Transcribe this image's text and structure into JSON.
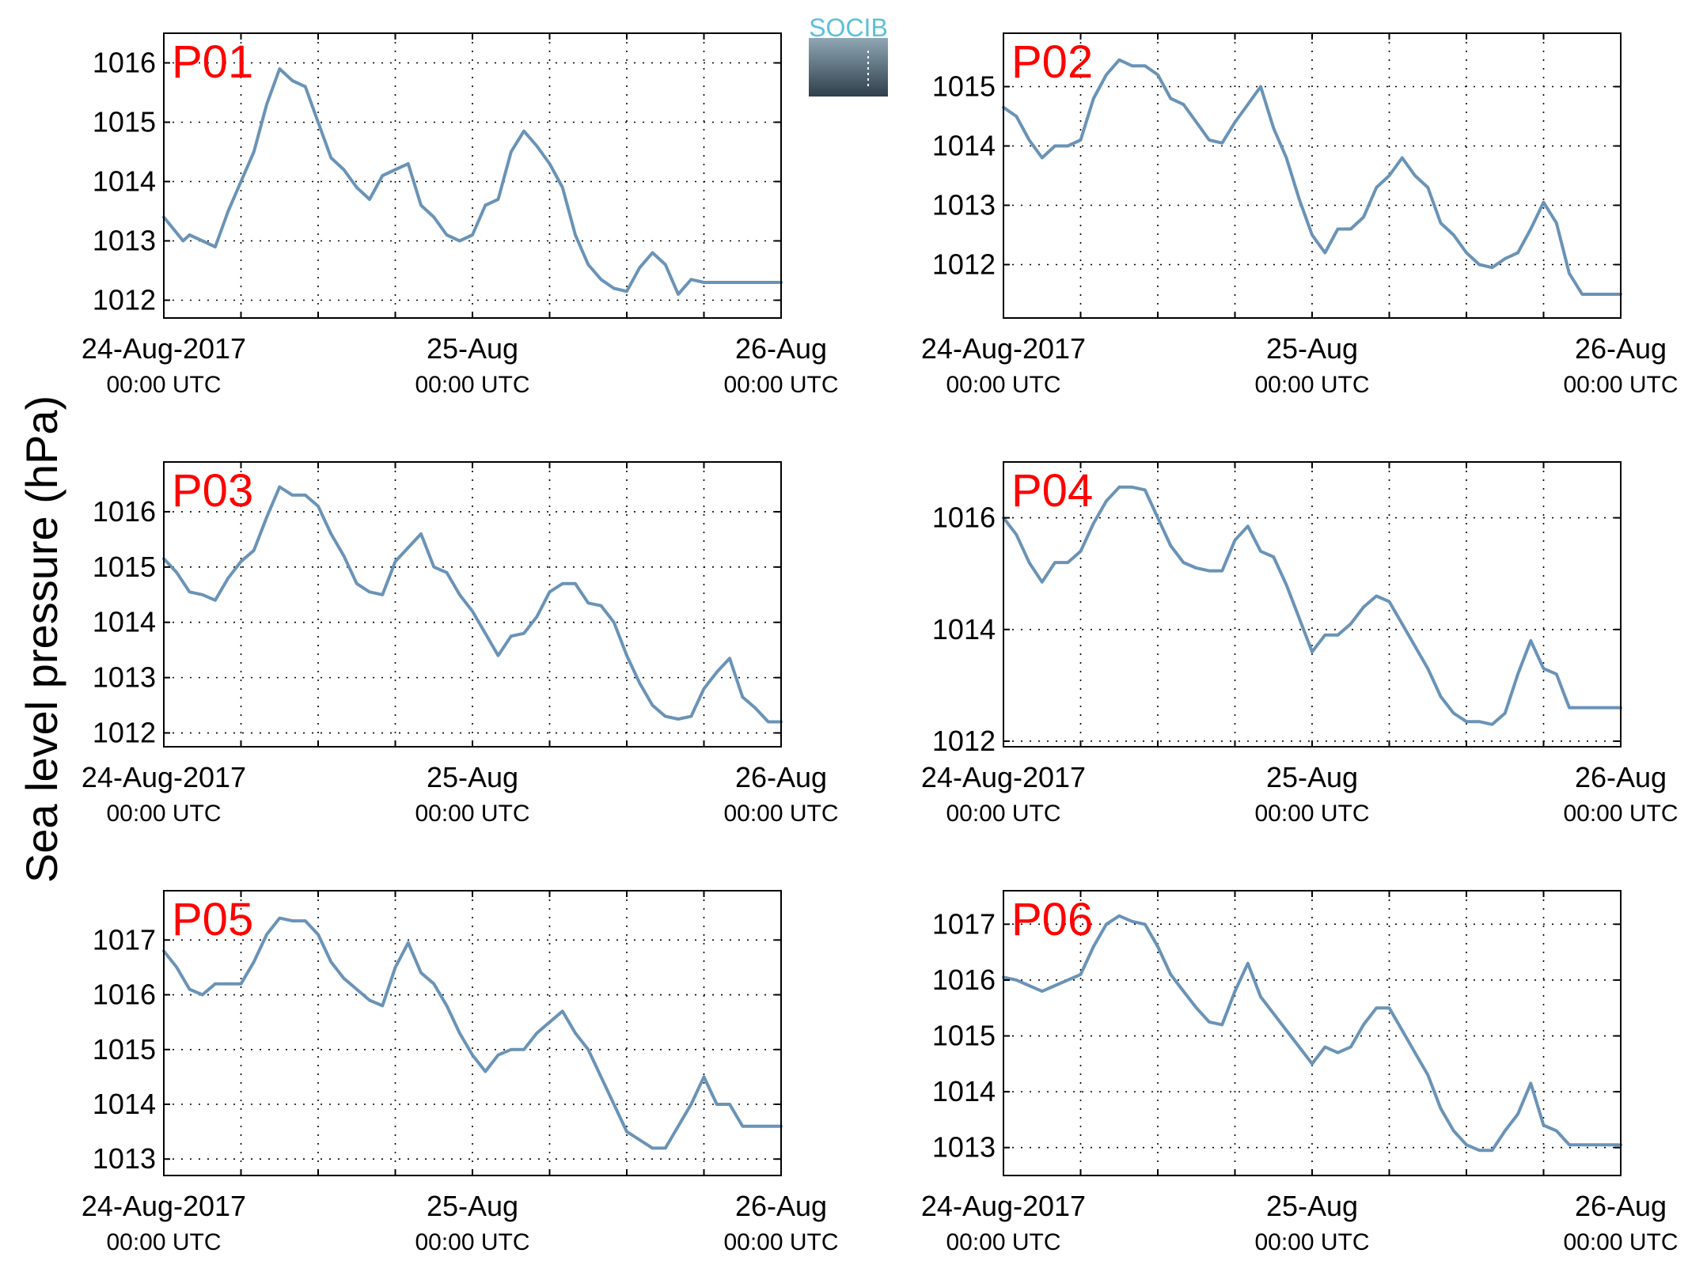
{
  "figure": {
    "ylabel": "Sea level pressure (hPa)",
    "logo_text": "SOCIB",
    "line_color": "#6a93b6",
    "label_color": "#ff0000"
  },
  "chart_data": [
    {
      "type": "line",
      "panel": "P01",
      "label": "P01",
      "x_ticks": [
        {
          "main": "24-Aug-2017",
          "sub": "00:00 UTC"
        },
        {
          "main": "25-Aug",
          "sub": "00:00 UTC"
        },
        {
          "main": "26-Aug",
          "sub": "00:00 UTC"
        }
      ],
      "xlim": [
        0,
        48
      ],
      "ylim": [
        1011.7,
        1016.5
      ],
      "yticks": [
        1012,
        1013,
        1014,
        1015,
        1016
      ],
      "grid": true,
      "series": [
        {
          "x_hours": [
            0,
            1.5,
            2,
            3,
            4,
            5,
            6,
            7,
            8,
            9,
            10,
            11,
            12,
            13,
            14,
            15,
            16,
            17,
            18,
            19,
            20,
            21,
            22,
            23,
            24,
            25,
            26,
            27,
            28,
            29,
            30,
            31,
            32,
            33,
            34,
            35,
            36,
            37,
            38,
            39,
            40,
            41,
            42,
            43,
            44,
            45,
            46,
            47,
            48
          ],
          "values": [
            1013.4,
            1013.0,
            1013.1,
            1013.0,
            1012.9,
            1013.5,
            1014.0,
            1014.5,
            1015.3,
            1015.9,
            1015.7,
            1015.6,
            1015.0,
            1014.4,
            1014.2,
            1013.9,
            1013.7,
            1014.1,
            1014.2,
            1014.3,
            1013.6,
            1013.4,
            1013.1,
            1013.0,
            1013.1,
            1013.6,
            1013.7,
            1014.5,
            1014.85,
            1014.6,
            1014.3,
            1013.9,
            1013.1,
            1012.6,
            1012.35,
            1012.2,
            1012.15,
            1012.55,
            1012.8,
            1012.6,
            1012.1,
            1012.35,
            1012.3,
            1012.3,
            1012.3,
            1012.3,
            1012.3,
            1012.3,
            1012.3
          ]
        }
      ]
    },
    {
      "type": "line",
      "panel": "P02",
      "label": "P02",
      "x_ticks": [
        {
          "main": "24-Aug-2017",
          "sub": "00:00 UTC"
        },
        {
          "main": "25-Aug",
          "sub": "00:00 UTC"
        },
        {
          "main": "26-Aug",
          "sub": "00:00 UTC"
        }
      ],
      "xlim": [
        0,
        48
      ],
      "ylim": [
        1011.1,
        1015.9
      ],
      "yticks": [
        1012,
        1013,
        1014,
        1015
      ],
      "grid": true,
      "series": [
        {
          "x_hours": [
            0,
            1,
            2,
            3,
            4,
            5,
            6,
            7,
            8,
            9,
            10,
            11,
            12,
            13,
            14,
            15,
            16,
            17,
            18,
            19,
            20,
            21,
            22,
            23,
            24,
            25,
            26,
            27,
            28,
            29,
            30,
            31,
            32,
            33,
            34,
            35,
            36,
            37,
            38,
            39,
            40,
            41,
            42,
            43,
            44,
            45,
            46,
            47,
            48
          ],
          "values": [
            1014.65,
            1014.5,
            1014.1,
            1013.8,
            1014.0,
            1014.0,
            1014.1,
            1014.8,
            1015.2,
            1015.45,
            1015.35,
            1015.35,
            1015.2,
            1014.8,
            1014.7,
            1014.4,
            1014.1,
            1014.05,
            1014.4,
            1014.7,
            1015.0,
            1014.3,
            1013.8,
            1013.1,
            1012.5,
            1012.2,
            1012.6,
            1012.6,
            1012.8,
            1013.3,
            1013.5,
            1013.8,
            1013.5,
            1013.3,
            1012.7,
            1012.5,
            1012.2,
            1012.0,
            1011.95,
            1012.1,
            1012.2,
            1012.6,
            1013.05,
            1012.7,
            1011.85,
            1011.5,
            1011.5,
            1011.5,
            1011.5
          ]
        }
      ]
    },
    {
      "type": "line",
      "panel": "P03",
      "label": "P03",
      "x_ticks": [
        {
          "main": "24-Aug-2017",
          "sub": "00:00 UTC"
        },
        {
          "main": "25-Aug",
          "sub": "00:00 UTC"
        },
        {
          "main": "26-Aug",
          "sub": "00:00 UTC"
        }
      ],
      "xlim": [
        0,
        48
      ],
      "ylim": [
        1011.75,
        1016.9
      ],
      "yticks": [
        1012,
        1013,
        1014,
        1015,
        1016
      ],
      "grid": true,
      "series": [
        {
          "x_hours": [
            0,
            1,
            2,
            3,
            4,
            5,
            6,
            7,
            8,
            9,
            10,
            11,
            12,
            13,
            14,
            15,
            16,
            17,
            18,
            19,
            20,
            21,
            22,
            23,
            24,
            25,
            26,
            27,
            28,
            29,
            30,
            31,
            32,
            33,
            34,
            35,
            36,
            37,
            38,
            39,
            40,
            41,
            42,
            43,
            44,
            45,
            46,
            47,
            48
          ],
          "values": [
            1015.15,
            1014.9,
            1014.55,
            1014.5,
            1014.4,
            1014.8,
            1015.1,
            1015.3,
            1015.9,
            1016.45,
            1016.3,
            1016.3,
            1016.1,
            1015.6,
            1015.2,
            1014.7,
            1014.55,
            1014.5,
            1015.1,
            1015.35,
            1015.6,
            1015.0,
            1014.9,
            1014.5,
            1014.2,
            1013.8,
            1013.4,
            1013.75,
            1013.8,
            1014.1,
            1014.55,
            1014.7,
            1014.7,
            1014.35,
            1014.3,
            1014.0,
            1013.4,
            1012.9,
            1012.5,
            1012.3,
            1012.25,
            1012.3,
            1012.8,
            1013.1,
            1013.35,
            1012.65,
            1012.45,
            1012.2,
            1012.2
          ]
        }
      ]
    },
    {
      "type": "line",
      "panel": "P04",
      "label": "P04",
      "x_ticks": [
        {
          "main": "24-Aug-2017",
          "sub": "00:00 UTC"
        },
        {
          "main": "25-Aug",
          "sub": "00:00 UTC"
        },
        {
          "main": "26-Aug",
          "sub": "00:00 UTC"
        }
      ],
      "xlim": [
        0,
        48
      ],
      "ylim": [
        1011.9,
        1017.0
      ],
      "yticks": [
        1012,
        1014,
        1016
      ],
      "grid": true,
      "series": [
        {
          "x_hours": [
            0,
            1,
            2,
            3,
            4,
            5,
            6,
            7,
            8,
            9,
            10,
            11,
            12,
            13,
            14,
            15,
            16,
            17,
            18,
            19,
            20,
            21,
            22,
            23,
            24,
            25,
            26,
            27,
            28,
            29,
            30,
            31,
            32,
            33,
            34,
            35,
            36,
            37,
            38,
            39,
            40,
            41,
            42,
            43,
            44,
            45,
            46,
            47,
            48
          ],
          "values": [
            1016.0,
            1015.7,
            1015.2,
            1014.85,
            1015.2,
            1015.2,
            1015.4,
            1015.9,
            1016.3,
            1016.55,
            1016.55,
            1016.5,
            1016.0,
            1015.5,
            1015.2,
            1015.1,
            1015.05,
            1015.05,
            1015.6,
            1015.85,
            1015.4,
            1015.3,
            1014.8,
            1014.2,
            1013.6,
            1013.9,
            1013.9,
            1014.1,
            1014.4,
            1014.6,
            1014.5,
            1014.1,
            1013.7,
            1013.3,
            1012.8,
            1012.5,
            1012.35,
            1012.35,
            1012.3,
            1012.5,
            1013.2,
            1013.8,
            1013.3,
            1013.2,
            1012.6,
            1012.6,
            1012.6,
            1012.6,
            1012.6
          ]
        }
      ]
    },
    {
      "type": "line",
      "panel": "P05",
      "label": "P05",
      "x_ticks": [
        {
          "main": "24-Aug-2017",
          "sub": "00:00 UTC"
        },
        {
          "main": "25-Aug",
          "sub": "00:00 UTC"
        },
        {
          "main": "26-Aug",
          "sub": "00:00 UTC"
        }
      ],
      "xlim": [
        0,
        48
      ],
      "ylim": [
        1012.7,
        1017.9
      ],
      "yticks": [
        1013,
        1014,
        1015,
        1016,
        1017
      ],
      "grid": true,
      "series": [
        {
          "x_hours": [
            0,
            1,
            2,
            3,
            4,
            5,
            6,
            7,
            8,
            9,
            10,
            11,
            12,
            13,
            14,
            15,
            16,
            17,
            18,
            19,
            20,
            21,
            22,
            23,
            24,
            25,
            26,
            27,
            28,
            29,
            30,
            31,
            32,
            33,
            34,
            35,
            36,
            37,
            38,
            39,
            40,
            41,
            42,
            43,
            44,
            45,
            46,
            47,
            48
          ],
          "values": [
            1016.8,
            1016.5,
            1016.1,
            1016.0,
            1016.2,
            1016.2,
            1016.2,
            1016.6,
            1017.1,
            1017.4,
            1017.35,
            1017.35,
            1017.1,
            1016.6,
            1016.3,
            1016.1,
            1015.9,
            1015.8,
            1016.5,
            1016.95,
            1016.4,
            1016.2,
            1015.8,
            1015.3,
            1014.9,
            1014.6,
            1014.9,
            1015.0,
            1015.0,
            1015.3,
            1015.5,
            1015.7,
            1015.3,
            1015.0,
            1014.5,
            1014.0,
            1013.5,
            1013.35,
            1013.2,
            1013.2,
            1013.6,
            1014.0,
            1014.5,
            1014.0,
            1014.0,
            1013.6,
            1013.6,
            1013.6,
            1013.6
          ]
        }
      ]
    },
    {
      "type": "line",
      "panel": "P06",
      "label": "P06",
      "x_ticks": [
        {
          "main": "24-Aug-2017",
          "sub": "00:00 UTC"
        },
        {
          "main": "25-Aug",
          "sub": "00:00 UTC"
        },
        {
          "main": "26-Aug",
          "sub": "00:00 UTC"
        }
      ],
      "xlim": [
        0,
        48
      ],
      "ylim": [
        1012.5,
        1017.6
      ],
      "yticks": [
        1013,
        1014,
        1015,
        1016,
        1017
      ],
      "grid": true,
      "series": [
        {
          "x_hours": [
            0,
            1,
            2,
            3,
            4,
            5,
            6,
            7,
            8,
            9,
            10,
            11,
            12,
            13,
            14,
            15,
            16,
            17,
            18,
            19,
            20,
            21,
            22,
            23,
            24,
            25,
            26,
            27,
            28,
            29,
            30,
            31,
            32,
            33,
            34,
            35,
            36,
            37,
            38,
            39,
            40,
            41,
            42,
            43,
            44,
            45,
            46,
            47,
            48
          ],
          "values": [
            1016.05,
            1016.0,
            1015.9,
            1015.8,
            1015.9,
            1016.0,
            1016.1,
            1016.6,
            1017.0,
            1017.15,
            1017.05,
            1017.0,
            1016.6,
            1016.1,
            1015.8,
            1015.5,
            1015.25,
            1015.2,
            1015.8,
            1016.3,
            1015.7,
            1015.4,
            1015.1,
            1014.8,
            1014.5,
            1014.8,
            1014.7,
            1014.8,
            1015.2,
            1015.5,
            1015.5,
            1015.1,
            1014.7,
            1014.3,
            1013.7,
            1013.3,
            1013.05,
            1012.95,
            1012.95,
            1013.3,
            1013.6,
            1014.15,
            1013.4,
            1013.3,
            1013.05,
            1013.05,
            1013.05,
            1013.05,
            1013.05
          ]
        }
      ]
    }
  ]
}
